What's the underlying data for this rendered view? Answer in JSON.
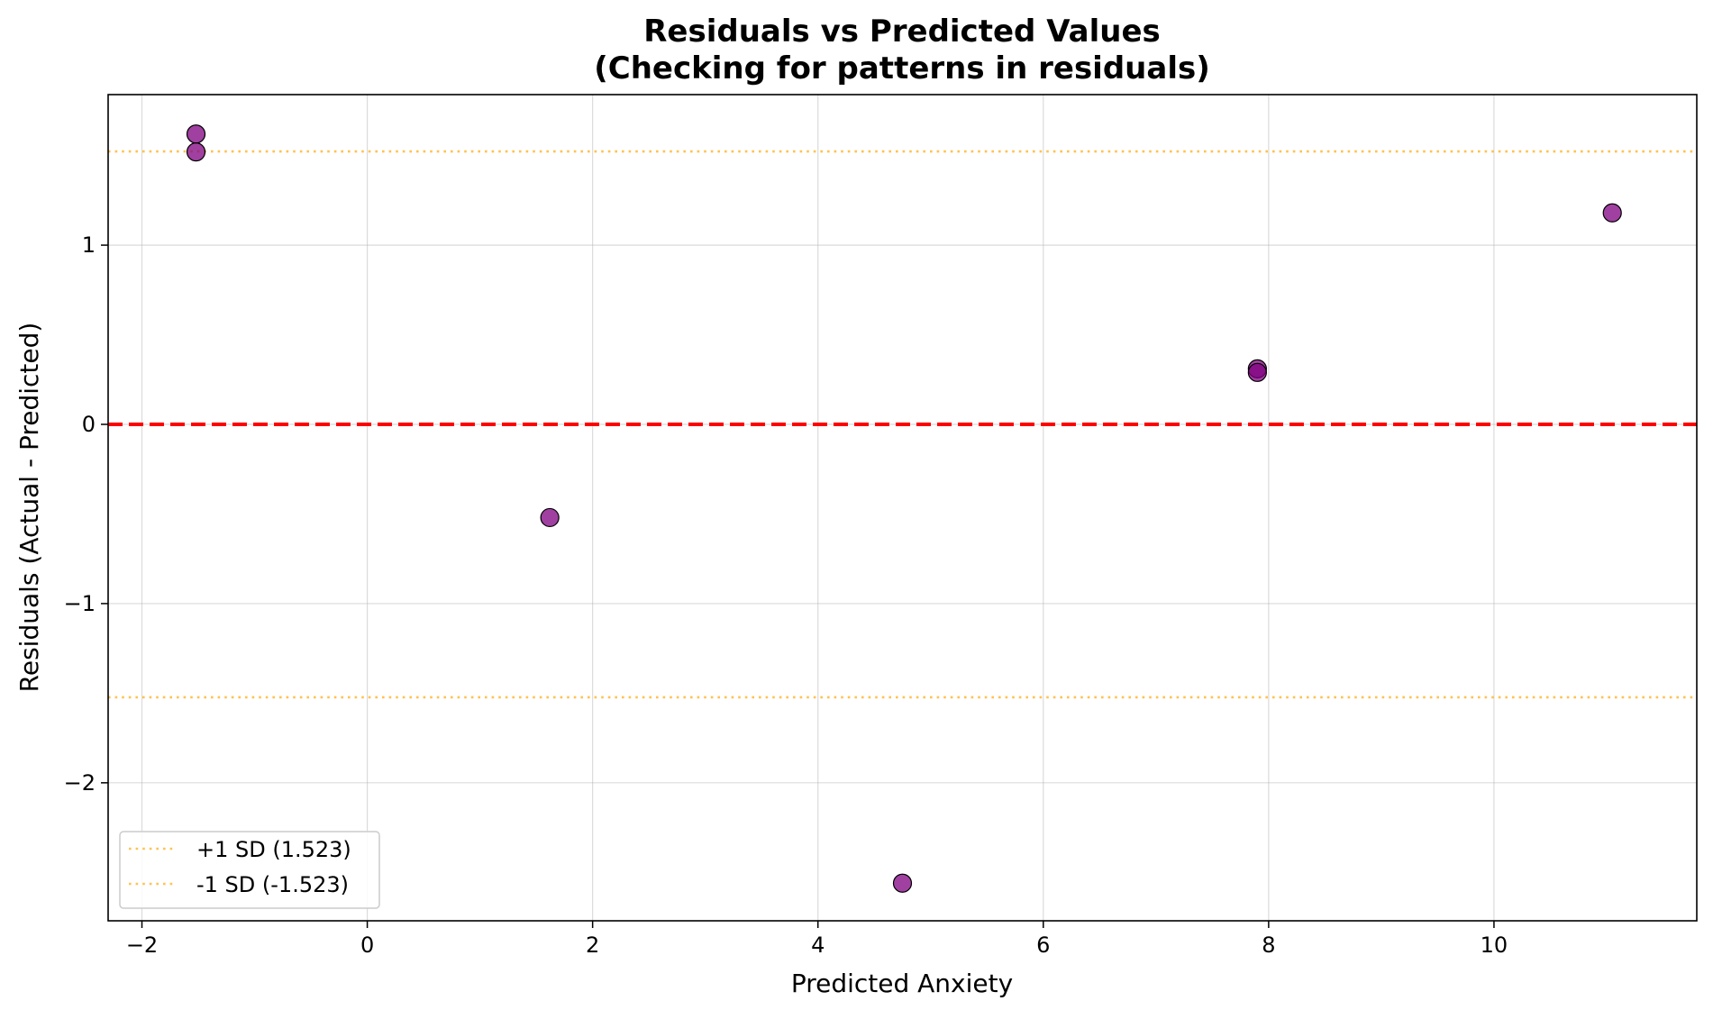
{
  "chart_data": {
    "type": "scatter",
    "title": "Residuals vs Predicted Values",
    "subtitle": "(Checking for patterns in residuals)",
    "xlabel": "Predicted Anxiety",
    "ylabel": "Residuals (Actual - Predicted)",
    "xlim": [
      -2.3,
      11.8
    ],
    "ylim": [
      -2.77,
      1.84
    ],
    "xticks": [
      {
        "value": -2,
        "label": "−2"
      },
      {
        "value": 0,
        "label": "0"
      },
      {
        "value": 2,
        "label": "2"
      },
      {
        "value": 4,
        "label": "4"
      },
      {
        "value": 6,
        "label": "6"
      },
      {
        "value": 8,
        "label": "8"
      },
      {
        "value": 10,
        "label": "10"
      }
    ],
    "yticks": [
      {
        "value": -2,
        "label": "−2"
      },
      {
        "value": -1,
        "label": "−1"
      },
      {
        "value": 0,
        "label": "0"
      },
      {
        "value": 1,
        "label": "1"
      }
    ],
    "grid": true,
    "legend_position": "lower-left",
    "points": [
      {
        "x": -1.52,
        "y": 1.62
      },
      {
        "x": -1.52,
        "y": 1.52
      },
      {
        "x": 1.62,
        "y": -0.52
      },
      {
        "x": 4.75,
        "y": -2.56
      },
      {
        "x": 7.9,
        "y": 0.31
      },
      {
        "x": 7.9,
        "y": 0.29
      },
      {
        "x": 11.05,
        "y": 1.18
      }
    ],
    "point_color": "#800080",
    "reference_lines": [
      {
        "y": 0,
        "color": "#ff0000",
        "style": "dashed",
        "label": ""
      },
      {
        "y": 1.523,
        "color": "#ffb732",
        "style": "dotted",
        "label": "+1 SD (1.523)"
      },
      {
        "y": -1.523,
        "color": "#ffb732",
        "style": "dotted",
        "label": "-1 SD (-1.523)"
      }
    ]
  }
}
